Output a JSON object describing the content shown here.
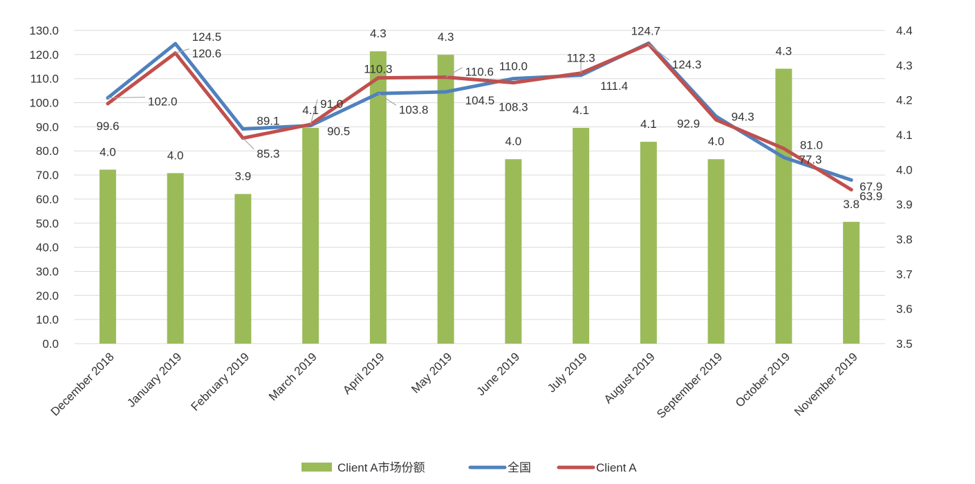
{
  "chart_data": {
    "type": "bar",
    "categories": [
      "December 2018",
      "January 2019",
      "February 2019",
      "March 2019",
      "April 2019",
      "May 2019",
      "June 2019",
      "July 2019",
      "August 2019",
      "September 2019",
      "October 2019",
      "November 2019"
    ],
    "ylim": [
      0,
      130
    ],
    "y_ticks": [
      "0.0",
      "10.0",
      "20.0",
      "30.0",
      "40.0",
      "50.0",
      "60.0",
      "70.0",
      "80.0",
      "90.0",
      "100.0",
      "110.0",
      "120.0",
      "130.0"
    ],
    "y2lim": [
      3.5,
      4.4
    ],
    "y2_ticks": [
      "3.5",
      "3.6",
      "3.7",
      "3.8",
      "3.9",
      "4.0",
      "4.1",
      "4.2",
      "4.3",
      "4.4"
    ],
    "grid": true,
    "legend_position": "bottom",
    "series": [
      {
        "name": "Client A市场份额",
        "type": "bar",
        "axis": "right",
        "color": "#9BBB59",
        "values": [
          4.0,
          3.99,
          3.93,
          4.12,
          4.34,
          4.33,
          4.03,
          4.12,
          4.08,
          4.03,
          4.29,
          3.85
        ],
        "labels": [
          "4.0",
          "4.0",
          "3.9",
          "4.1",
          "4.3",
          "4.3",
          "4.0",
          "4.1",
          "4.1",
          "4.0",
          "4.3",
          "3.8"
        ]
      },
      {
        "name": "全国",
        "type": "line",
        "axis": "left",
        "color": "#4F81BD",
        "values": [
          102.0,
          124.5,
          89.1,
          90.5,
          103.8,
          104.5,
          110.0,
          111.4,
          124.7,
          94.3,
          77.3,
          67.9
        ],
        "labels": [
          "102.0",
          "124.5",
          "89.1",
          "90.5",
          "103.8",
          "104.5",
          "110.0",
          "111.4",
          "124.7",
          "94.3",
          "77.3",
          "67.9"
        ]
      },
      {
        "name": "Client A",
        "type": "line",
        "axis": "left",
        "color": "#C0504D",
        "values": [
          99.6,
          120.6,
          85.3,
          91.0,
          110.3,
          110.6,
          108.3,
          112.3,
          124.3,
          92.9,
          81.0,
          63.9
        ],
        "labels": [
          "99.6",
          "120.6",
          "85.3",
          "91.0",
          "110.3",
          "110.6",
          "108.3",
          "112.3",
          "124.3",
          "92.9",
          "81.0",
          "63.9"
        ]
      }
    ]
  }
}
